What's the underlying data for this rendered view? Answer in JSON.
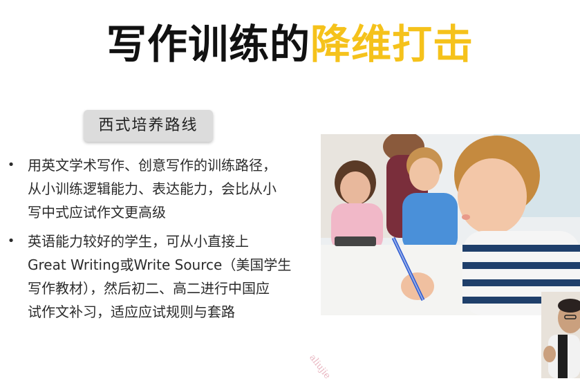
{
  "slide": {
    "title_dark": "写作训练的",
    "title_accent": "降维打击",
    "tag_label": "西式培养路线",
    "bullets": [
      {
        "lines": [
          "用英文学术写作、创意写作的训练路径，",
          "从小训练逻辑能力、表达能力，会比从小",
          "写中式应试作文更高级"
        ]
      },
      {
        "lines": [
          "英语能力较好的学生，可从小直接上",
          "Great Writing或Write Source（美国学生",
          "写作教材），然后初二、高二进行中国应",
          "试作文补习，适应应试规则与套路"
        ]
      }
    ],
    "watermark": "aliujie",
    "colors": {
      "title": "#111111",
      "accent": "#f5c21b",
      "tag_bg": "#dcdcdc",
      "text": "#2b2b2b"
    },
    "icons": {
      "bullet": "bullet-dot"
    }
  }
}
